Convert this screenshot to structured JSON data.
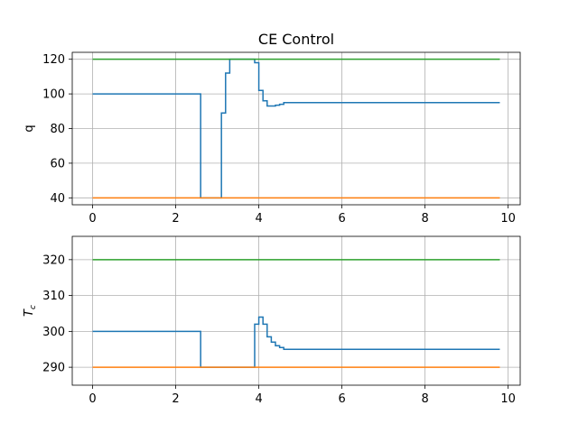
{
  "figure_title": "CE Control",
  "chart_data": [
    {
      "type": "line",
      "ylabel": "q",
      "xlim": [
        -0.49,
        10.29
      ],
      "ylim": [
        36,
        124
      ],
      "xticks": [
        0,
        2,
        4,
        6,
        8,
        10
      ],
      "xtick_labels": [
        "0",
        "2",
        "4",
        "6",
        "8",
        "10"
      ],
      "yticks": [
        40,
        60,
        80,
        100,
        120
      ],
      "ytick_labels": [
        "40",
        "60",
        "80",
        "100",
        "120"
      ],
      "grid": true,
      "series": [
        {
          "color": "#1f77b4",
          "step": true,
          "x": [
            0,
            2.6,
            3.1,
            3.2,
            3.3,
            3.9,
            4.0,
            4.1,
            4.2,
            4.4,
            4.5,
            4.6,
            9.8
          ],
          "y": [
            100,
            40,
            89,
            112,
            120,
            118,
            102,
            96,
            93,
            93.5,
            94,
            95,
            95
          ]
        },
        {
          "color": "#ff7f0e",
          "step": false,
          "x": [
            0,
            9.8
          ],
          "y": [
            40,
            40
          ]
        },
        {
          "color": "#2ca02c",
          "step": false,
          "x": [
            0,
            9.8
          ],
          "y": [
            120,
            120
          ]
        }
      ]
    },
    {
      "type": "line",
      "ylabel": "T_c",
      "xlim": [
        -0.49,
        10.29
      ],
      "ylim": [
        285,
        326.5
      ],
      "xticks": [
        0,
        2,
        4,
        6,
        8,
        10
      ],
      "xtick_labels": [
        "0",
        "2",
        "4",
        "6",
        "8",
        "10"
      ],
      "yticks": [
        290,
        300,
        310,
        320
      ],
      "ytick_labels": [
        "290",
        "300",
        "310",
        "320"
      ],
      "grid": true,
      "series": [
        {
          "color": "#1f77b4",
          "step": true,
          "x": [
            0,
            2.6,
            3.9,
            4.0,
            4.1,
            4.2,
            4.3,
            4.4,
            4.5,
            4.6,
            9.8
          ],
          "y": [
            300,
            290,
            302,
            304,
            302,
            298.5,
            297,
            296,
            295.5,
            295,
            295
          ]
        },
        {
          "color": "#ff7f0e",
          "step": false,
          "x": [
            0,
            9.8
          ],
          "y": [
            290,
            290
          ]
        },
        {
          "color": "#2ca02c",
          "step": false,
          "x": [
            0,
            9.8
          ],
          "y": [
            320,
            320
          ]
        }
      ]
    }
  ]
}
